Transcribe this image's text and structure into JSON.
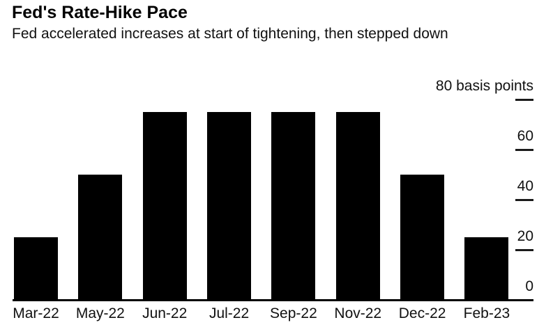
{
  "header": {
    "title": "Fed's Rate-Hike Pace",
    "subtitle": "Fed accelerated increases at start of tightening, then stepped down"
  },
  "colors": {
    "bar": "#000000",
    "axis": "#000000",
    "text": "#111111",
    "background": "#ffffff"
  },
  "chart_data": {
    "type": "bar",
    "title": "Fed's Rate-Hike Pace",
    "subtitle": "Fed accelerated increases at start of tightening, then stepped down",
    "categories": [
      "Mar-22",
      "May-22",
      "Jun-22",
      "Jul-22",
      "Sep-22",
      "Nov-22",
      "Dec-22",
      "Feb-23"
    ],
    "values": [
      25,
      50,
      75,
      75,
      75,
      75,
      50,
      25
    ],
    "unit": "basis points",
    "xlabel": "",
    "ylabel": "basis points",
    "ylim": [
      0,
      80
    ],
    "yticks": [
      {
        "value": 80,
        "label": "80 basis points"
      },
      {
        "value": 60,
        "label": "60"
      },
      {
        "value": 40,
        "label": "40"
      },
      {
        "value": 20,
        "label": "20"
      },
      {
        "value": 0,
        "label": "0"
      }
    ],
    "grid": false,
    "legend": "none",
    "axis_position": "right"
  }
}
